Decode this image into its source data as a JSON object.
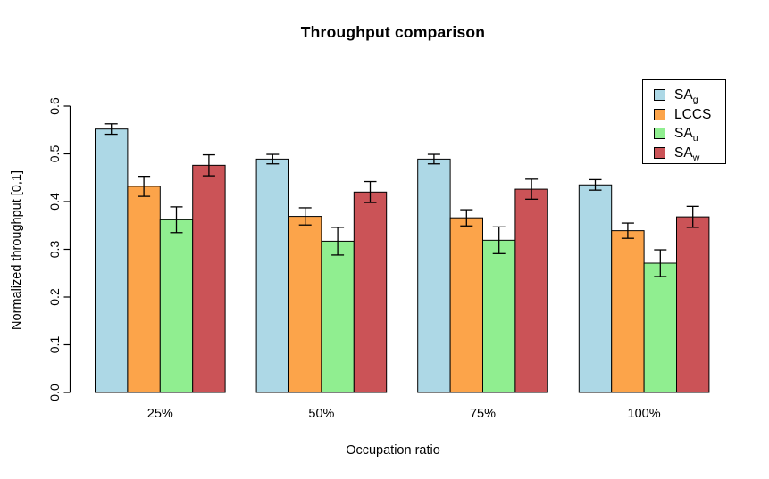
{
  "window": {
    "background": "#ffffff"
  },
  "chart_data": {
    "type": "bar",
    "title": "Throughput comparison",
    "xlabel": "Occupation ratio",
    "ylabel": "Normalized throughput [0,1]",
    "categories": [
      "25%",
      "50%",
      "75%",
      "100%"
    ],
    "series": [
      {
        "name": "SA_g",
        "label_base": "SA",
        "label_sub": "g",
        "color": "#ADD8E6",
        "values": [
          0.552,
          0.489,
          0.489,
          0.435
        ],
        "errors": [
          0.011,
          0.01,
          0.01,
          0.011
        ]
      },
      {
        "name": "LCCS",
        "label_base": "LCCS",
        "label_sub": "",
        "color": "#FCA44A",
        "values": [
          0.432,
          0.369,
          0.366,
          0.339
        ],
        "errors": [
          0.021,
          0.018,
          0.017,
          0.016
        ]
      },
      {
        "name": "SA_u",
        "label_base": "SA",
        "label_sub": "u",
        "color": "#90EE90",
        "values": [
          0.362,
          0.317,
          0.319,
          0.271
        ],
        "errors": [
          0.027,
          0.029,
          0.028,
          0.028
        ]
      },
      {
        "name": "SA_w",
        "label_base": "SA",
        "label_sub": "w",
        "color": "#CB5357",
        "values": [
          0.476,
          0.42,
          0.426,
          0.368
        ],
        "errors": [
          0.022,
          0.022,
          0.021,
          0.022
        ]
      }
    ],
    "ylim": [
      0,
      0.6
    ],
    "yticks": [
      "0.0",
      "0.1",
      "0.2",
      "0.3",
      "0.4",
      "0.5",
      "0.6"
    ],
    "grid": false,
    "legend_position": "top-right",
    "bar_border_color": "#000000",
    "error_bar_color": "#000000"
  }
}
